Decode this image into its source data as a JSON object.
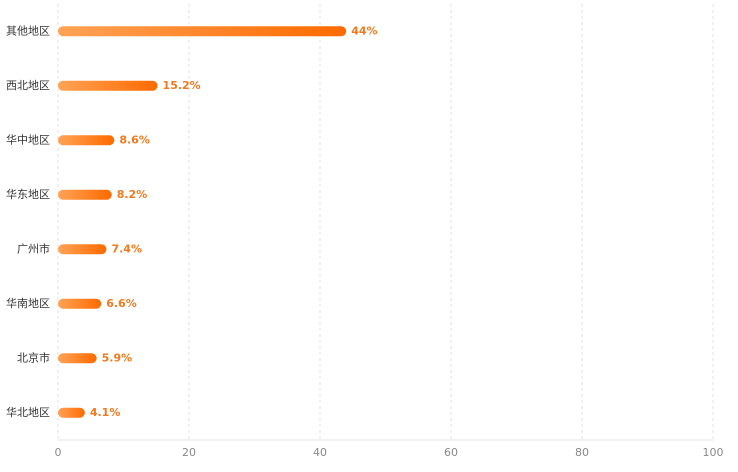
{
  "chart_data": {
    "type": "hbar",
    "categories": [
      "其他地区",
      "西北地区",
      "华中地区",
      "华东地区",
      "广州市",
      "华南地区",
      "北京市",
      "华北地区"
    ],
    "values": [
      44,
      15.2,
      8.6,
      8.2,
      7.4,
      6.6,
      5.9,
      4.1
    ],
    "value_labels": [
      "44%",
      "15.2%",
      "8.6%",
      "8.2%",
      "7.4%",
      "6.6%",
      "5.9%",
      "4.1%"
    ],
    "colors": [
      "#ffa356",
      "#ff6a00"
    ],
    "xlim": [
      0,
      100
    ],
    "xticks": [
      0,
      20,
      40,
      60,
      80,
      100
    ],
    "grid": true
  }
}
